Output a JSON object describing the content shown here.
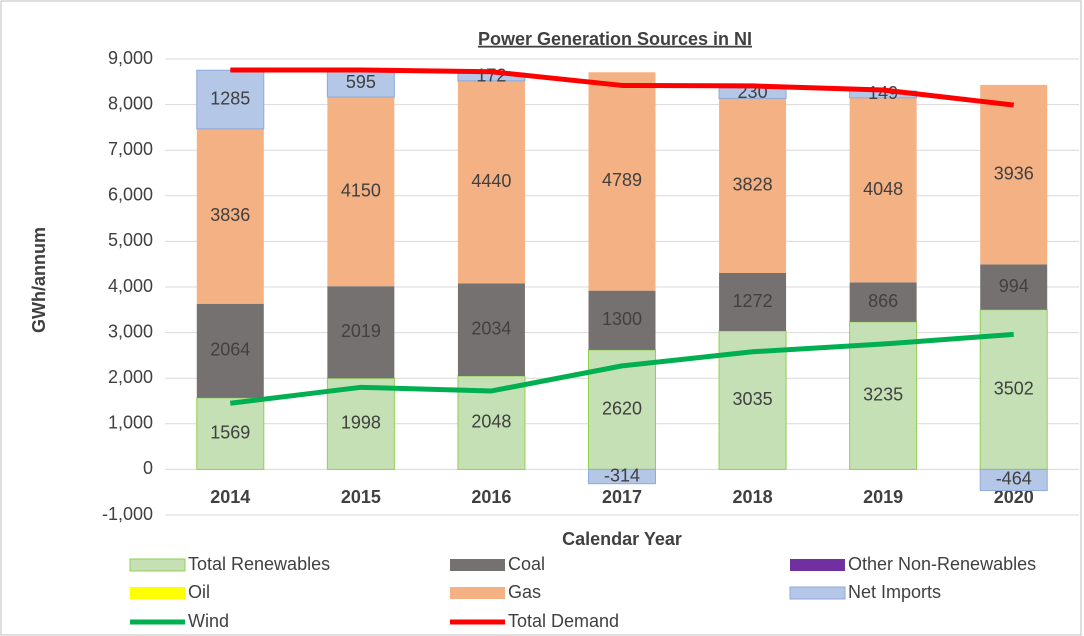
{
  "chart_data": {
    "type": "bar",
    "title": "Power Generation Sources in NI",
    "x_label": "Calendar Year",
    "y_label": "GWh/annum",
    "categories": [
      "2014",
      "2015",
      "2016",
      "2017",
      "2018",
      "2019",
      "2020"
    ],
    "stacked": true,
    "grid": true,
    "legend": "bottom",
    "ylim": [
      -1000,
      9000
    ],
    "yticks": [
      {
        "value": -1000,
        "label": "-1,000"
      },
      0,
      {
        "value": 1000,
        "label": "1,000"
      },
      {
        "value": 2000,
        "label": "2,000"
      },
      {
        "value": 3000,
        "label": "3,000"
      },
      {
        "value": 4000,
        "label": "4,000"
      },
      {
        "value": 5000,
        "label": "5,000"
      },
      {
        "value": 6000,
        "label": "6,000"
      },
      {
        "value": 7000,
        "label": "7,000"
      },
      {
        "value": 8000,
        "label": "8,000"
      },
      {
        "value": 9000,
        "label": "9,000"
      }
    ],
    "series": [
      {
        "name": "Total Renewables",
        "type": "bar",
        "color": "#c5e0b4",
        "values": [
          1569,
          1998,
          2048,
          2620,
          3035,
          3235,
          3502
        ]
      },
      {
        "name": "Coal",
        "type": "bar",
        "color": "#767171",
        "values": [
          2064,
          2019,
          2034,
          1300,
          1272,
          866,
          994
        ]
      },
      {
        "name": "Other Non-Renewables",
        "type": "bar",
        "color": "#7030a0",
        "values": [
          0,
          0,
          0,
          0,
          0,
          0,
          0
        ]
      },
      {
        "name": "Oil",
        "type": "bar",
        "color": "#ffff00",
        "values": [
          0,
          0,
          0,
          0,
          0,
          0,
          0
        ]
      },
      {
        "name": "Gas",
        "type": "bar",
        "color": "#f4b183",
        "values": [
          3836,
          4150,
          4440,
          4789,
          3828,
          4048,
          3936
        ]
      },
      {
        "name": "Net Imports",
        "type": "bar",
        "color": "#b4c7e7",
        "values": [
          1285,
          595,
          172,
          -314,
          230,
          149,
          -464
        ]
      },
      {
        "name": "Wind",
        "type": "line",
        "color": "#00b050",
        "values": [
          1450,
          1800,
          1720,
          2270,
          2580,
          2750,
          2960
        ]
      },
      {
        "name": "Total Demand",
        "type": "line",
        "color": "#ff0000",
        "values": [
          8760,
          8760,
          8720,
          8420,
          8410,
          8320,
          7990
        ]
      }
    ]
  }
}
